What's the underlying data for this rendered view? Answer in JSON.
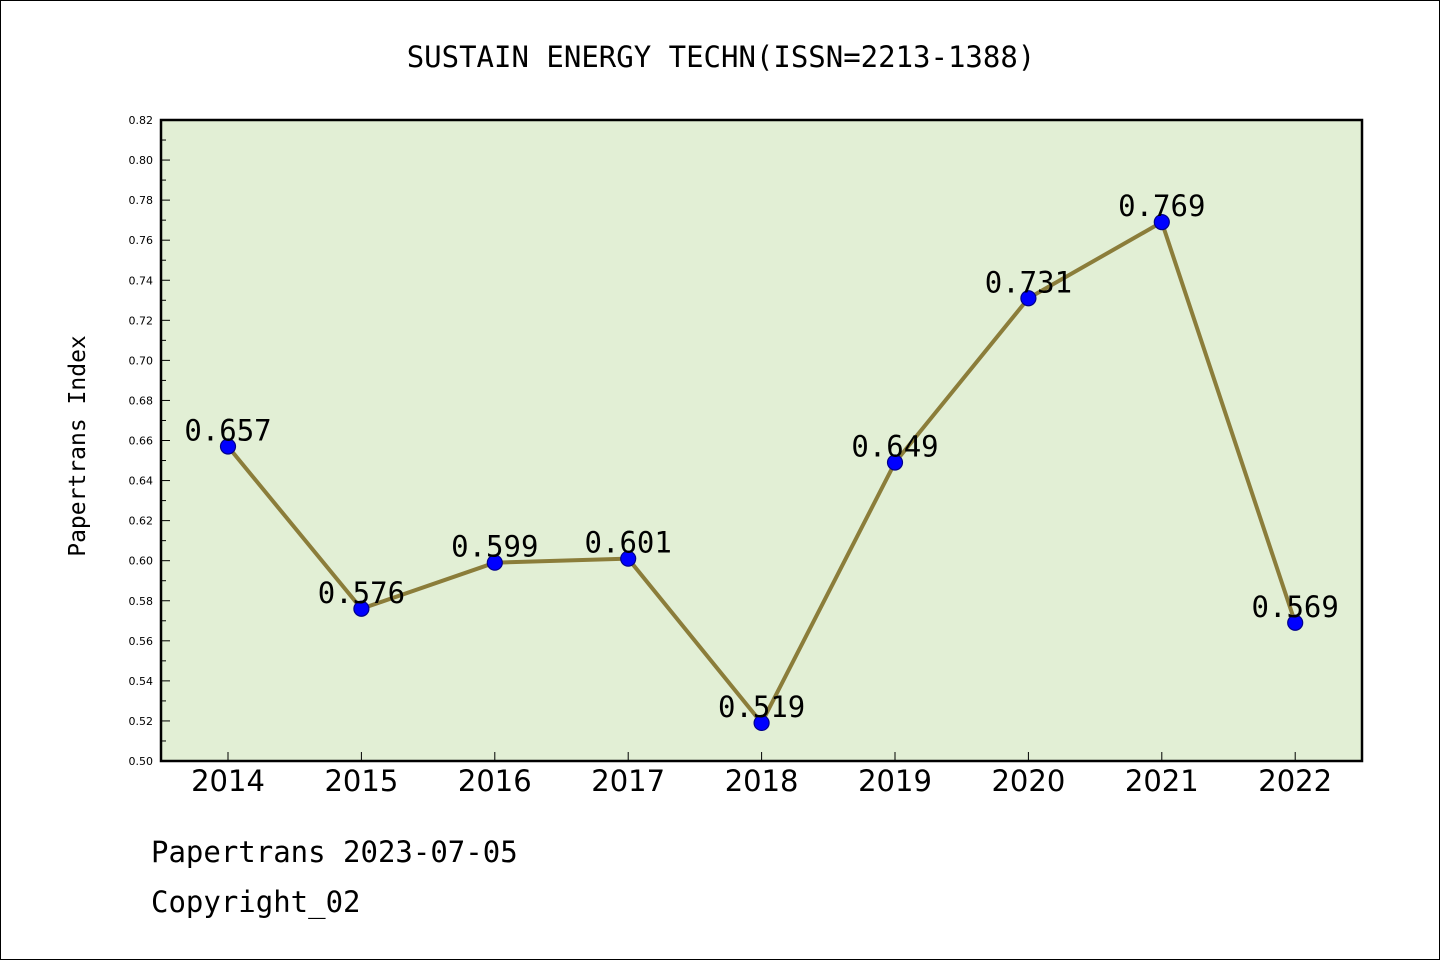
{
  "chart_data": {
    "type": "line",
    "title": "SUSTAIN ENERGY TECHN(ISSN=2213-1388)",
    "xlabel": "",
    "ylabel": "Papertrans Index",
    "categories": [
      "2014",
      "2015",
      "2016",
      "2017",
      "2018",
      "2019",
      "2020",
      "2021",
      "2022"
    ],
    "series": [
      {
        "values": [
          0.657,
          0.576,
          0.599,
          0.601,
          0.519,
          0.649,
          0.731,
          0.769,
          0.569
        ],
        "data_labels": [
          "0.657",
          "0.576",
          "0.599",
          "0.601",
          "0.519",
          "0.649",
          "0.731",
          "0.769",
          "0.569"
        ]
      }
    ],
    "ylim": [
      0.5,
      0.82
    ],
    "yticks": [
      "0.50",
      "0.52",
      "0.54",
      "0.56",
      "0.58",
      "0.60",
      "0.62",
      "0.64",
      "0.66",
      "0.68",
      "0.70",
      "0.72",
      "0.74",
      "0.76",
      "0.78",
      "0.80",
      "0.82"
    ],
    "grid": false,
    "colors": {
      "plot_background": "#e2efd5",
      "line": "#8b7d3a",
      "marker_fill": "#0000ff",
      "marker_edge": "#00008b"
    }
  },
  "footer": {
    "line1": "Papertrans 2023-07-05",
    "line2": "Copyright_02"
  }
}
